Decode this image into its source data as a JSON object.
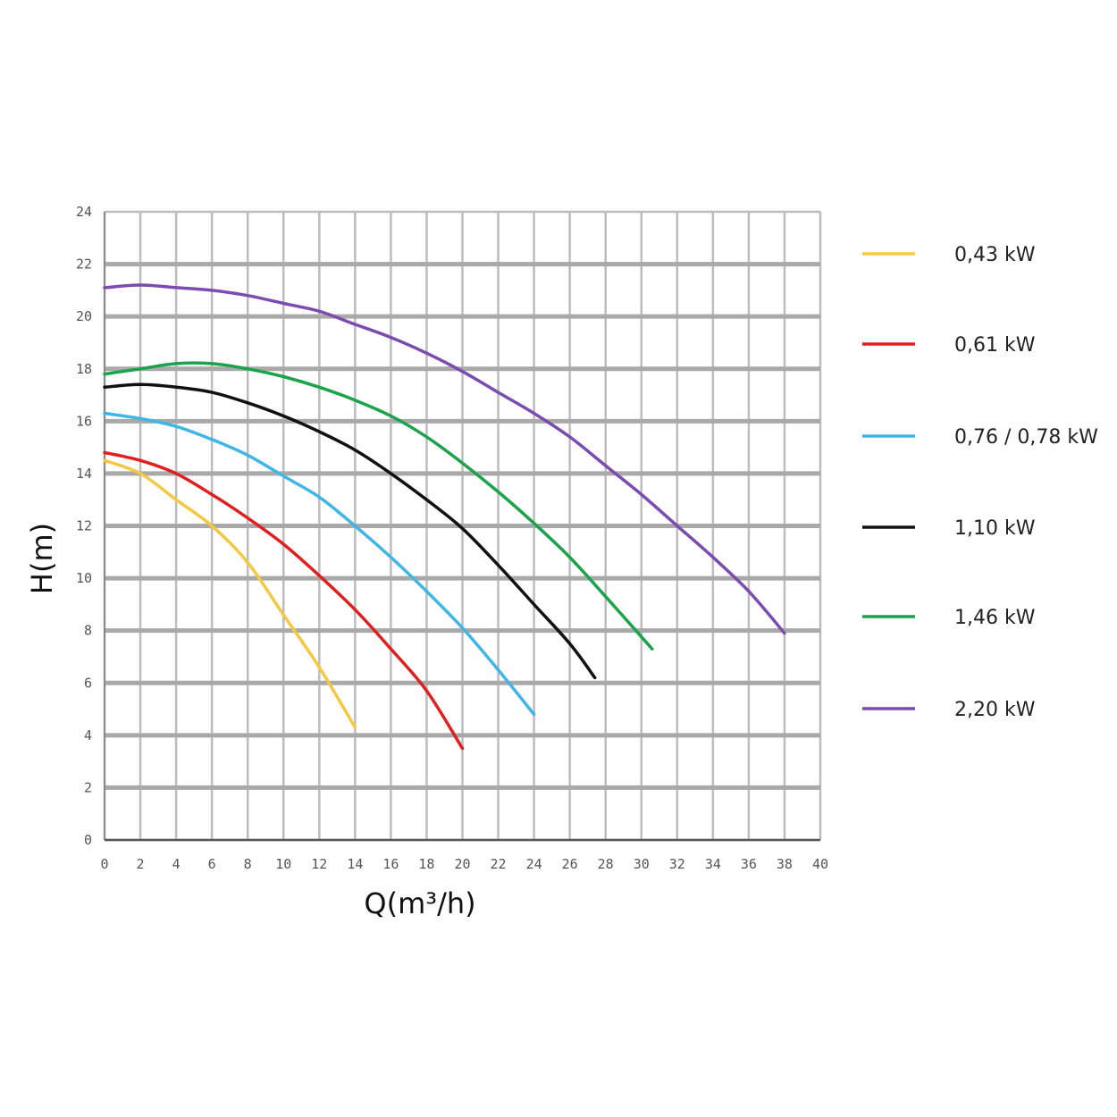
{
  "chart_data": {
    "type": "line",
    "title": "",
    "xlabel": "Q(m³/h)",
    "ylabel": "H(m)",
    "xlim": [
      0,
      40
    ],
    "ylim": [
      0,
      24
    ],
    "x_ticks": [
      "0",
      "2",
      "4",
      "6",
      "8",
      "10",
      "12",
      "14",
      "16",
      "18",
      "20",
      "22",
      "24",
      "26",
      "28",
      "30",
      "32",
      "34",
      "36",
      "38",
      "40"
    ],
    "y_ticks": [
      "0",
      "2",
      "4",
      "6",
      "8",
      "10",
      "12",
      "14",
      "16",
      "18",
      "20",
      "22",
      "24"
    ],
    "grid": true,
    "legend_position": "right",
    "series": [
      {
        "name": "0,43 kW",
        "color": "#f5c842",
        "points": [
          [
            0,
            14.5
          ],
          [
            2,
            14
          ],
          [
            4,
            13
          ],
          [
            6,
            12
          ],
          [
            8,
            10.6
          ],
          [
            10,
            8.6
          ],
          [
            12,
            6.6
          ],
          [
            14,
            4.3
          ]
        ]
      },
      {
        "name": "0,61 kW",
        "color": "#e02020",
        "points": [
          [
            0,
            14.8
          ],
          [
            2,
            14.5
          ],
          [
            4,
            14
          ],
          [
            6,
            13.2
          ],
          [
            8,
            12.3
          ],
          [
            10,
            11.3
          ],
          [
            12,
            10.1
          ],
          [
            14,
            8.8
          ],
          [
            16,
            7.3
          ],
          [
            18,
            5.7
          ],
          [
            20,
            3.5
          ]
        ]
      },
      {
        "name": "0,76 / 0,78 kW",
        "color": "#3fb6e6",
        "points": [
          [
            0,
            16.3
          ],
          [
            2,
            16.1
          ],
          [
            4,
            15.8
          ],
          [
            6,
            15.3
          ],
          [
            8,
            14.7
          ],
          [
            10,
            13.9
          ],
          [
            12,
            13.1
          ],
          [
            14,
            12
          ],
          [
            16,
            10.8
          ],
          [
            18,
            9.5
          ],
          [
            20,
            8.1
          ],
          [
            22,
            6.5
          ],
          [
            24,
            4.8
          ]
        ]
      },
      {
        "name": "1,10 kW",
        "color": "#111111",
        "points": [
          [
            0,
            17.3
          ],
          [
            2,
            17.4
          ],
          [
            4,
            17.3
          ],
          [
            6,
            17.1
          ],
          [
            8,
            16.7
          ],
          [
            10,
            16.2
          ],
          [
            12,
            15.6
          ],
          [
            14,
            14.9
          ],
          [
            16,
            14
          ],
          [
            18,
            13
          ],
          [
            20,
            11.9
          ],
          [
            22,
            10.5
          ],
          [
            24,
            9
          ],
          [
            26,
            7.5
          ],
          [
            27.4,
            6.2
          ]
        ]
      },
      {
        "name": "1,46 kW",
        "color": "#1aa34a",
        "points": [
          [
            0,
            17.8
          ],
          [
            2,
            18
          ],
          [
            4,
            18.2
          ],
          [
            6,
            18.2
          ],
          [
            8,
            18
          ],
          [
            10,
            17.7
          ],
          [
            12,
            17.3
          ],
          [
            14,
            16.8
          ],
          [
            16,
            16.2
          ],
          [
            18,
            15.4
          ],
          [
            20,
            14.4
          ],
          [
            22,
            13.3
          ],
          [
            24,
            12.1
          ],
          [
            26,
            10.8
          ],
          [
            28,
            9.3
          ],
          [
            30.6,
            7.3
          ]
        ]
      },
      {
        "name": "2,20 kW",
        "color": "#7a4bb0",
        "points": [
          [
            0,
            21.1
          ],
          [
            2,
            21.2
          ],
          [
            4,
            21.1
          ],
          [
            6,
            21
          ],
          [
            8,
            20.8
          ],
          [
            10,
            20.5
          ],
          [
            12,
            20.2
          ],
          [
            14,
            19.7
          ],
          [
            16,
            19.2
          ],
          [
            18,
            18.6
          ],
          [
            20,
            17.9
          ],
          [
            22,
            17.1
          ],
          [
            24,
            16.3
          ],
          [
            26,
            15.4
          ],
          [
            28,
            14.3
          ],
          [
            30,
            13.2
          ],
          [
            32,
            12
          ],
          [
            34,
            10.8
          ],
          [
            36,
            9.5
          ],
          [
            38,
            7.9
          ]
        ]
      }
    ]
  }
}
